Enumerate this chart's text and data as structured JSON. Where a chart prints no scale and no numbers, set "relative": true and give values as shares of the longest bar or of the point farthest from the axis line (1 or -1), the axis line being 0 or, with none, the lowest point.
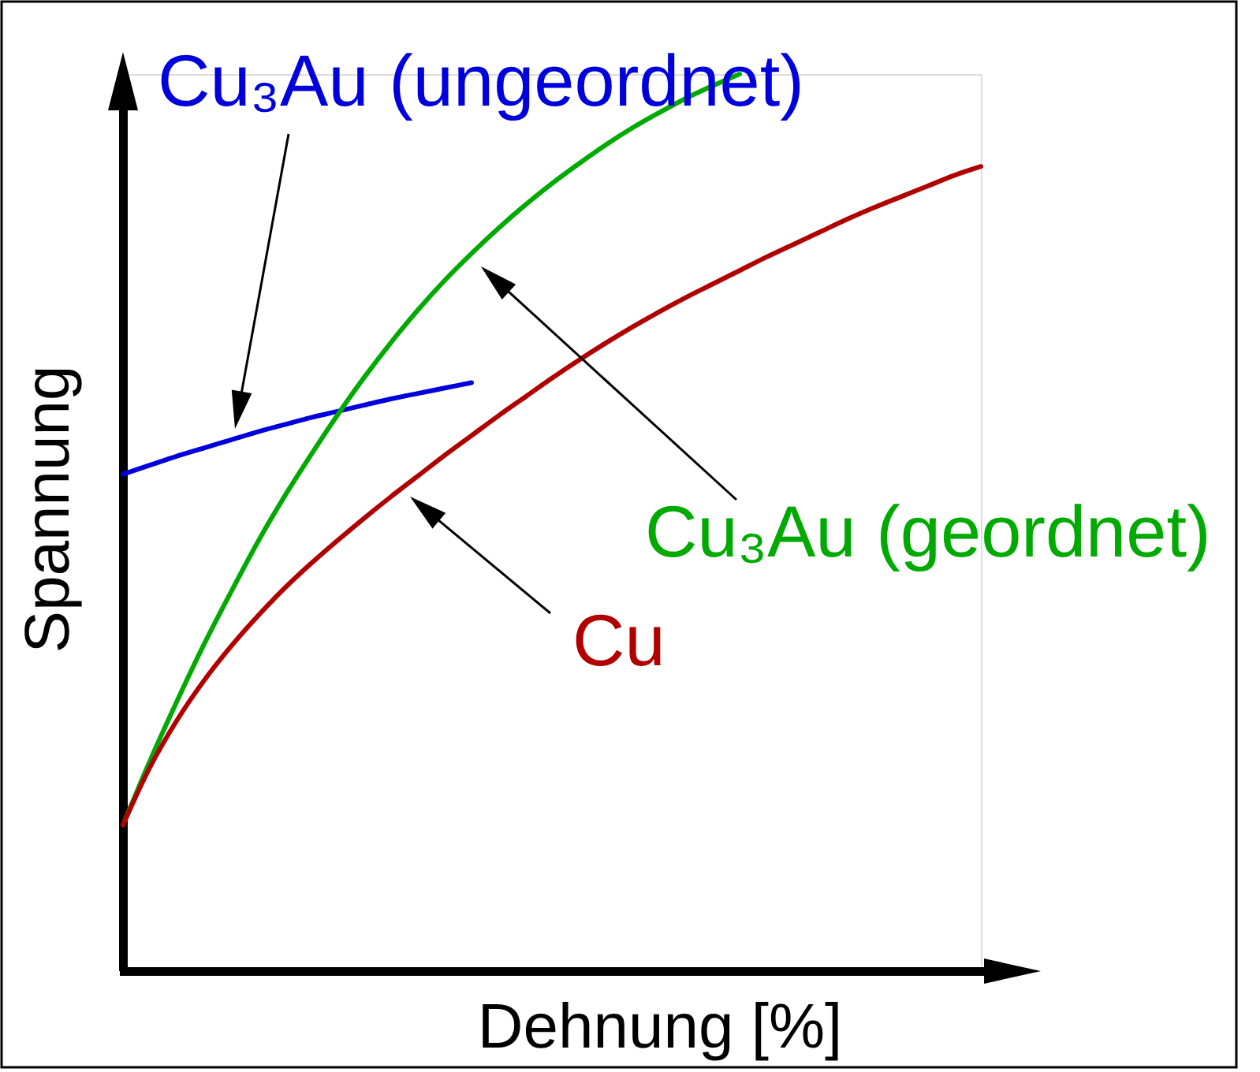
{
  "chart_data": {
    "type": "line",
    "relative": true,
    "xlabel": "Dehnung [%]",
    "ylabel": "Spannung",
    "categories": [
      null,
      null,
      null,
      null,
      null,
      null,
      null,
      null,
      null,
      null,
      null,
      null,
      null,
      null,
      null,
      null,
      null,
      null,
      null,
      null,
      null,
      null,
      null,
      null,
      null,
      null,
      null,
      null,
      null,
      null,
      null,
      null,
      null
    ],
    "series": [
      {
        "name": "Cu₃Au (ungeordnet)",
        "color": "#0000dd",
        "values": [
          0.554,
          0.564,
          0.574,
          0.583,
          0.592,
          0.601,
          0.609,
          0.617,
          0.624,
          0.631,
          0.638,
          0.644,
          0.65,
          0.656,
          null,
          null,
          null,
          null,
          null,
          null,
          null,
          null,
          null,
          null,
          null,
          null,
          null,
          null,
          null,
          null,
          null,
          null,
          null
        ]
      },
      {
        "name": "Cu₃Au (geordnet)",
        "color": "#00aa00",
        "values": [
          0.163,
          0.234,
          0.3,
          0.363,
          0.421,
          0.477,
          0.528,
          0.575,
          0.62,
          0.662,
          0.701,
          0.737,
          0.77,
          0.8,
          0.828,
          0.854,
          0.878,
          0.9,
          0.921,
          0.94,
          0.957,
          0.973,
          0.987,
          1.0,
          null,
          null,
          null,
          null,
          null,
          null,
          null,
          null,
          null
        ]
      },
      {
        "name": "Cu",
        "color": "#b00000",
        "values": [
          0.163,
          0.227,
          0.279,
          0.323,
          0.361,
          0.395,
          0.426,
          0.454,
          0.48,
          0.505,
          0.529,
          0.552,
          0.575,
          0.597,
          0.619,
          0.64,
          0.661,
          0.681,
          0.7,
          0.718,
          0.735,
          0.751,
          0.766,
          0.781,
          0.796,
          0.81,
          0.824,
          0.838,
          0.851,
          0.863,
          0.875,
          0.887,
          0.897
        ]
      }
    ]
  }
}
